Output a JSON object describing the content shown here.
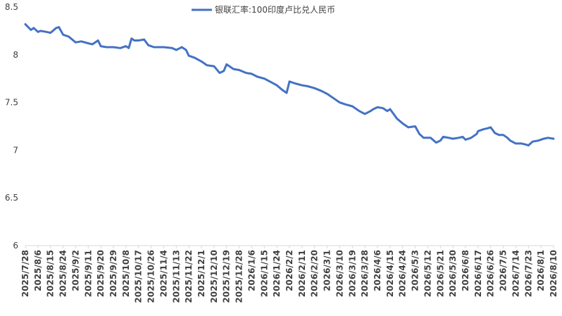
{
  "chart_data": {
    "type": "line",
    "legend": {
      "position": "top-center"
    },
    "grid": false,
    "color": "#4472C4",
    "ylim": [
      6,
      8.5
    ],
    "yticks": [
      "6",
      "6.5",
      "7",
      "7.5",
      "8",
      "8.5"
    ],
    "xlabels": [
      "2025/7/28",
      "2025/8/6",
      "2025/8/15",
      "2025/8/24",
      "2025/9/2",
      "2025/9/11",
      "2025/9/20",
      "2025/9/29",
      "2025/10/8",
      "2025/10/17",
      "2025/10/26",
      "2025/11/4",
      "2025/11/13",
      "2025/11/22",
      "2025/12/1",
      "2025/12/10",
      "2025/12/19",
      "2025/12/28",
      "2026/1/6",
      "2026/1/15",
      "2026/1/24",
      "2026/2/2",
      "2026/2/11",
      "2026/2/20",
      "2026/3/1",
      "2026/3/10",
      "2026/3/19",
      "2026/3/28",
      "2026/4/6",
      "2026/4/15",
      "2026/4/24",
      "2026/5/3",
      "2026/5/12",
      "2026/5/21",
      "2026/5/30",
      "2026/6/8",
      "2026/6/17",
      "2026/6/26",
      "2026/7/5",
      "2026/7/14",
      "2026/7/23",
      "2026/8/1",
      "2026/8/10"
    ],
    "series": [
      {
        "name": "银联汇率:100印度卢比兑人民币",
        "x": [
          "2025/7/28",
          "2025/8/1",
          "2025/8/3",
          "2025/8/6",
          "2025/8/8",
          "2025/8/12",
          "2025/8/15",
          "2025/8/19",
          "2025/8/21",
          "2025/8/24",
          "2025/8/28",
          "2025/9/2",
          "2025/9/6",
          "2025/9/11",
          "2025/9/14",
          "2025/9/16",
          "2025/9/18",
          "2025/9/20",
          "2025/9/24",
          "2025/9/29",
          "2025/10/4",
          "2025/10/8",
          "2025/10/10",
          "2025/10/12",
          "2025/10/14",
          "2025/10/17",
          "2025/10/21",
          "2025/10/24",
          "2025/10/28",
          "2025/11/4",
          "2025/11/10",
          "2025/11/13",
          "2025/11/17",
          "2025/11/20",
          "2025/11/22",
          "2025/11/26",
          "2025/12/1",
          "2025/12/5",
          "2025/12/10",
          "2025/12/14",
          "2025/12/17",
          "2025/12/19",
          "2025/12/21",
          "2025/12/24",
          "2025/12/28",
          "2026/1/2",
          "2026/1/6",
          "2026/1/10",
          "2026/1/15",
          "2026/1/19",
          "2026/1/24",
          "2026/1/28",
          "2026/1/31",
          "2026/2/2",
          "2026/2/6",
          "2026/2/11",
          "2026/2/15",
          "2026/2/20",
          "2026/2/25",
          "2026/3/1",
          "2026/3/6",
          "2026/3/10",
          "2026/3/14",
          "2026/3/19",
          "2026/3/24",
          "2026/3/28",
          "2026/4/1",
          "2026/4/3",
          "2026/4/6",
          "2026/4/10",
          "2026/4/13",
          "2026/4/15",
          "2026/4/20",
          "2026/4/24",
          "2026/4/28",
          "2026/5/3",
          "2026/5/6",
          "2026/5/9",
          "2026/5/14",
          "2026/5/18",
          "2026/5/21",
          "2026/5/23",
          "2026/5/27",
          "2026/5/30",
          "2026/6/3",
          "2026/6/6",
          "2026/6/8",
          "2026/6/12",
          "2026/6/16",
          "2026/6/17",
          "2026/6/21",
          "2026/6/24",
          "2026/6/26",
          "2026/6/29",
          "2026/7/2",
          "2026/7/5",
          "2026/7/8",
          "2026/7/10",
          "2026/7/14",
          "2026/7/18",
          "2026/7/21",
          "2026/7/23",
          "2026/7/26",
          "2026/7/30",
          "2026/8/3",
          "2026/8/6",
          "2026/8/10"
        ],
        "values": [
          8.32,
          8.26,
          8.28,
          8.24,
          8.25,
          8.24,
          8.23,
          8.28,
          8.29,
          8.21,
          8.19,
          8.13,
          8.14,
          8.12,
          8.11,
          8.13,
          8.15,
          8.09,
          8.08,
          8.08,
          8.07,
          8.09,
          8.07,
          8.17,
          8.15,
          8.15,
          8.16,
          8.1,
          8.08,
          8.08,
          8.07,
          8.05,
          8.08,
          8.05,
          7.99,
          7.97,
          7.93,
          7.89,
          7.88,
          7.81,
          7.83,
          7.9,
          7.88,
          7.85,
          7.84,
          7.81,
          7.8,
          7.77,
          7.75,
          7.72,
          7.68,
          7.63,
          7.6,
          7.72,
          7.7,
          7.68,
          7.67,
          7.65,
          7.62,
          7.59,
          7.54,
          7.5,
          7.48,
          7.46,
          7.41,
          7.38,
          7.41,
          7.43,
          7.45,
          7.44,
          7.41,
          7.43,
          7.33,
          7.28,
          7.24,
          7.25,
          7.17,
          7.13,
          7.13,
          7.08,
          7.1,
          7.14,
          7.13,
          7.12,
          7.13,
          7.14,
          7.11,
          7.13,
          7.17,
          7.2,
          7.22,
          7.23,
          7.24,
          7.18,
          7.16,
          7.16,
          7.13,
          7.1,
          7.07,
          7.07,
          7.06,
          7.05,
          7.09,
          7.1,
          7.12,
          7.13,
          7.12
        ]
      }
    ]
  }
}
